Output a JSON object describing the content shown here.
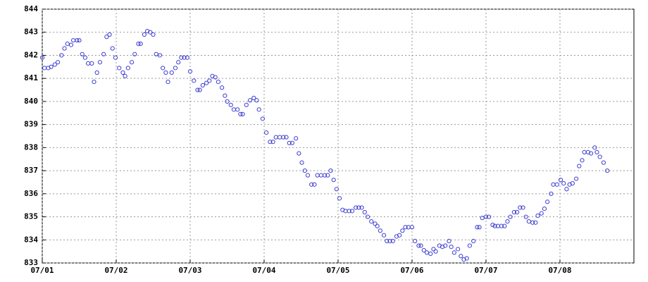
{
  "chart_data": {
    "type": "scatter",
    "color": "#3f3fd0",
    "grid": true,
    "xlim": [
      0,
      8
    ],
    "ylim": [
      833,
      844
    ],
    "xticks": [
      {
        "value": 0,
        "label": "07/01"
      },
      {
        "value": 1,
        "label": "07/02"
      },
      {
        "value": 2,
        "label": "07/03"
      },
      {
        "value": 3,
        "label": "07/04"
      },
      {
        "value": 4,
        "label": "07/05"
      },
      {
        "value": 5,
        "label": "07/06"
      },
      {
        "value": 6,
        "label": "07/07"
      },
      {
        "value": 7,
        "label": "07/08"
      }
    ],
    "yticks": [
      833,
      834,
      835,
      836,
      837,
      838,
      839,
      840,
      841,
      842,
      843,
      844
    ],
    "x": [
      0,
      0.03,
      0.08,
      0.12,
      0.17,
      0.21,
      0.26,
      0.3,
      0.34,
      0.39,
      0.42,
      0.47,
      0.5,
      0.54,
      0.58,
      0.62,
      0.67,
      0.7,
      0.74,
      0.78,
      0.83,
      0.87,
      0.91,
      0.95,
      0.99,
      1.04,
      1.09,
      1.12,
      1.16,
      1.21,
      1.25,
      1.3,
      1.33,
      1.38,
      1.42,
      1.46,
      1.5,
      1.54,
      1.59,
      1.63,
      1.67,
      1.7,
      1.75,
      1.8,
      1.84,
      1.88,
      1.92,
      1.96,
      2.0,
      2.05,
      2.1,
      2.13,
      2.17,
      2.22,
      2.26,
      2.3,
      2.34,
      2.38,
      2.43,
      2.47,
      2.5,
      2.55,
      2.59,
      2.64,
      2.68,
      2.71,
      2.76,
      2.81,
      2.86,
      2.9,
      2.93,
      2.98,
      3.03,
      3.08,
      3.12,
      3.16,
      3.21,
      3.26,
      3.3,
      3.34,
      3.38,
      3.43,
      3.47,
      3.51,
      3.55,
      3.59,
      3.64,
      3.68,
      3.72,
      3.77,
      3.82,
      3.86,
      3.9,
      3.94,
      3.98,
      4.02,
      4.06,
      4.1,
      4.15,
      4.19,
      4.24,
      4.28,
      4.32,
      4.36,
      4.4,
      4.45,
      4.5,
      4.53,
      4.57,
      4.62,
      4.66,
      4.7,
      4.74,
      4.79,
      4.83,
      4.87,
      4.91,
      4.95,
      5.0,
      5.04,
      5.09,
      5.12,
      5.16,
      5.2,
      5.25,
      5.29,
      5.32,
      5.37,
      5.41,
      5.45,
      5.5,
      5.53,
      5.57,
      5.62,
      5.66,
      5.7,
      5.74,
      5.78,
      5.83,
      5.88,
      5.91,
      5.95,
      6.0,
      6.04,
      6.09,
      6.12,
      6.16,
      6.21,
      6.25,
      6.29,
      6.33,
      6.38,
      6.42,
      6.46,
      6.5,
      6.54,
      6.58,
      6.63,
      6.67,
      6.7,
      6.75,
      6.79,
      6.83,
      6.88,
      6.91,
      6.96,
      7.01,
      7.05,
      7.09,
      7.13,
      7.17,
      7.22,
      7.26,
      7.3,
      7.33,
      7.38,
      7.42,
      7.47,
      7.5,
      7.54,
      7.59,
      7.64
    ],
    "values": [
      841.9,
      841.45,
      841.45,
      841.5,
      841.6,
      841.7,
      842.0,
      842.3,
      842.5,
      842.45,
      842.65,
      842.65,
      842.65,
      842.05,
      841.9,
      841.65,
      841.65,
      840.85,
      841.25,
      841.7,
      842.05,
      842.8,
      842.9,
      842.3,
      841.9,
      841.45,
      841.25,
      841.1,
      841.45,
      841.7,
      842.05,
      842.5,
      842.5,
      842.9,
      843.05,
      843.0,
      842.9,
      842.05,
      842.0,
      841.45,
      841.25,
      840.85,
      841.25,
      841.45,
      841.7,
      841.9,
      841.9,
      841.9,
      841.3,
      840.9,
      840.5,
      840.5,
      840.7,
      840.8,
      840.9,
      841.1,
      841.05,
      840.85,
      840.6,
      840.25,
      840.0,
      839.85,
      839.65,
      839.65,
      839.45,
      839.45,
      839.85,
      840.05,
      840.15,
      840.05,
      839.65,
      839.25,
      838.65,
      838.25,
      838.25,
      838.45,
      838.45,
      838.45,
      838.45,
      838.2,
      838.2,
      838.4,
      837.75,
      837.35,
      837.0,
      836.8,
      836.4,
      836.4,
      836.8,
      836.8,
      836.8,
      836.8,
      837.0,
      836.6,
      836.2,
      835.8,
      835.3,
      835.25,
      835.25,
      835.25,
      835.4,
      835.4,
      835.4,
      835.2,
      835.0,
      834.8,
      834.7,
      834.6,
      834.4,
      834.2,
      833.95,
      833.95,
      833.95,
      834.15,
      834.2,
      834.4,
      834.55,
      834.55,
      834.55,
      833.95,
      833.75,
      833.75,
      833.55,
      833.45,
      833.4,
      833.6,
      833.5,
      833.75,
      833.7,
      833.75,
      833.95,
      833.7,
      833.45,
      833.6,
      833.3,
      833.15,
      833.2,
      833.75,
      833.95,
      834.55,
      834.55,
      834.95,
      835.0,
      835.0,
      834.65,
      834.6,
      834.6,
      834.6,
      834.6,
      834.8,
      835.0,
      835.2,
      835.2,
      835.4,
      835.4,
      835.0,
      834.8,
      834.75,
      834.75,
      835.05,
      835.15,
      835.35,
      835.65,
      836.0,
      836.4,
      836.4,
      836.6,
      836.45,
      836.2,
      836.4,
      836.45,
      836.65,
      837.2,
      837.45,
      837.8,
      837.8,
      837.75,
      838.0,
      837.8,
      837.6,
      837.35,
      837.0
    ]
  }
}
